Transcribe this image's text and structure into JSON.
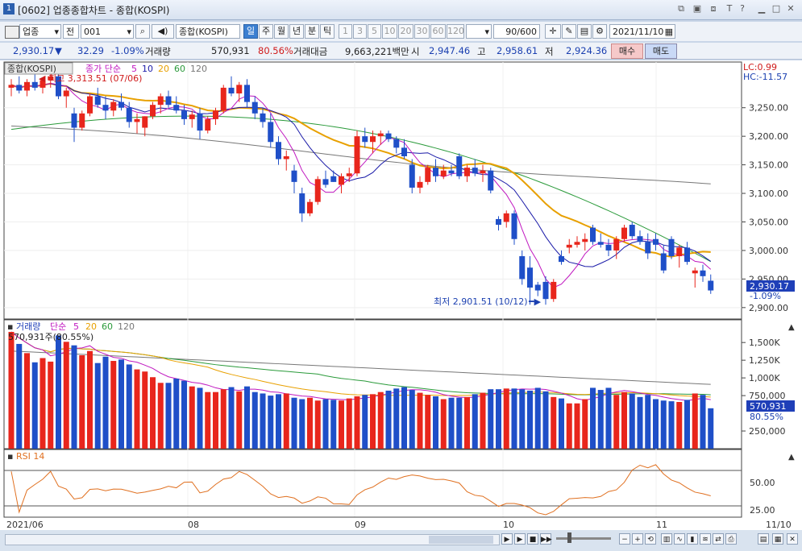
{
  "window": {
    "title": "[0602] 업종종합차트 - 종합(KOSPI)",
    "icon_label": "1"
  },
  "toolbar": {
    "market": "업종",
    "market_scope": "전",
    "code": "001",
    "index_name": "종합(KOSPI)",
    "periods": [
      "일",
      "주",
      "월",
      "년",
      "분",
      "틱"
    ],
    "selected_period": "일",
    "intervals": [
      "1",
      "3",
      "5",
      "10",
      "20",
      "30",
      "60",
      "120"
    ],
    "count": "90/600",
    "date": "2021/11/10"
  },
  "quote": {
    "price": "2,930.17",
    "change": "32.29",
    "change_pct": "-1.09%",
    "volume_label": "거래량",
    "volume": "570,931",
    "volume_ratio": "80.56%",
    "amount_label": "거래대금",
    "amount": "9,663,221백만",
    "open_label": "시",
    "open": "2,947.46",
    "high_label": "고",
    "high": "2,958.61",
    "low_label": "저",
    "low": "2,924.36",
    "buy_label": "매수",
    "sell_label": "매도"
  },
  "price_panel": {
    "series_label": "종합(KOSPI)",
    "ma_label": "종가 단순",
    "ma_periods": [
      "5",
      "10",
      "20",
      "60",
      "120"
    ],
    "max_annotation": "최고 3,313.51 (07/06)",
    "min_annotation": "최저 2,901.51 (10/12)",
    "lc_label": "LC:0.99",
    "hc_label": "HC:-11.57",
    "y_ticks": [
      "3,250.00",
      "3,200.00",
      "3,150.00",
      "3,100.00",
      "3,050.00",
      "3,000.00",
      "2,950.00",
      "2,900.00"
    ],
    "current_price_tag": "2,930.17",
    "current_change_tag": "-1.09%"
  },
  "volume_panel": {
    "series_label": "거래량",
    "ma_label": "단순",
    "ma_periods": [
      "5",
      "20",
      "60",
      "120"
    ],
    "last_label": "570,931주(80.55%)",
    "y_ticks": [
      "1,500K",
      "1,250K",
      "1,000K",
      "750,000",
      "250,000"
    ],
    "current_tag": "570,931",
    "current_pct_tag": "80.55%"
  },
  "rsi_panel": {
    "label": "RSI 14",
    "y_ticks": [
      "50.00",
      "25.00"
    ]
  },
  "x_axis": {
    "labels": [
      "2021/06",
      "08",
      "09",
      "10",
      "11"
    ],
    "end_date": "11/10"
  },
  "colors": {
    "up": "#e8261c",
    "down": "#1f4fc8",
    "ma5": "#c018c0",
    "ma10": "#1a1aa8",
    "ma20": "#e8a000",
    "ma60": "#2a9a3a",
    "ma120": "#777777",
    "rsi": "#e07020",
    "tag": "#1f3fb8"
  },
  "chart_data": {
    "type": "candlestick",
    "candles_ohlc": [
      [
        3285,
        3300,
        3270,
        3290
      ],
      [
        3290,
        3305,
        3275,
        3280
      ],
      [
        3280,
        3300,
        3270,
        3295
      ],
      [
        3295,
        3310,
        3280,
        3285
      ],
      [
        3285,
        3300,
        3275,
        3298
      ],
      [
        3298,
        3313,
        3285,
        3305
      ],
      [
        3305,
        3310,
        3265,
        3270
      ],
      [
        3270,
        3285,
        3250,
        3280
      ],
      [
        3240,
        3250,
        3190,
        3215
      ],
      [
        3215,
        3245,
        3210,
        3240
      ],
      [
        3240,
        3275,
        3235,
        3270
      ],
      [
        3270,
        3285,
        3250,
        3255
      ],
      [
        3255,
        3270,
        3230,
        3245
      ],
      [
        3245,
        3265,
        3235,
        3260
      ],
      [
        3260,
        3275,
        3245,
        3250
      ],
      [
        3250,
        3260,
        3215,
        3225
      ],
      [
        3225,
        3240,
        3205,
        3230
      ],
      [
        3215,
        3235,
        3200,
        3235
      ],
      [
        3235,
        3260,
        3230,
        3255
      ],
      [
        3255,
        3275,
        3240,
        3270
      ],
      [
        3270,
        3280,
        3250,
        3255
      ],
      [
        3255,
        3270,
        3240,
        3245
      ],
      [
        3245,
        3255,
        3220,
        3230
      ],
      [
        3230,
        3245,
        3215,
        3238
      ],
      [
        3240,
        3250,
        3195,
        3210
      ],
      [
        3210,
        3235,
        3205,
        3230
      ],
      [
        3230,
        3250,
        3220,
        3245
      ],
      [
        3245,
        3290,
        3240,
        3285
      ],
      [
        3285,
        3305,
        3270,
        3275
      ],
      [
        3275,
        3295,
        3260,
        3290
      ],
      [
        3290,
        3300,
        3250,
        3260
      ],
      [
        3260,
        3270,
        3230,
        3240
      ],
      [
        3240,
        3250,
        3215,
        3225
      ],
      [
        3225,
        3240,
        3180,
        3190
      ],
      [
        3190,
        3200,
        3150,
        3160
      ],
      [
        3160,
        3175,
        3140,
        3165
      ],
      [
        3140,
        3150,
        3100,
        3120
      ],
      [
        3100,
        3110,
        3050,
        3065
      ],
      [
        3065,
        3090,
        3060,
        3085
      ],
      [
        3085,
        3130,
        3080,
        3125
      ],
      [
        3125,
        3140,
        3110,
        3115
      ],
      [
        3130,
        3140,
        3120,
        3120
      ],
      [
        3115,
        3135,
        3100,
        3130
      ],
      [
        3130,
        3145,
        3120,
        3135
      ],
      [
        3135,
        3210,
        3130,
        3200
      ],
      [
        3200,
        3215,
        3180,
        3190
      ],
      [
        3190,
        3210,
        3170,
        3200
      ],
      [
        3200,
        3210,
        3185,
        3205
      ],
      [
        3205,
        3210,
        3190,
        3195
      ],
      [
        3195,
        3200,
        3170,
        3180
      ],
      [
        3180,
        3195,
        3160,
        3165
      ],
      [
        3150,
        3160,
        3100,
        3110
      ],
      [
        3110,
        3130,
        3100,
        3120
      ],
      [
        3120,
        3150,
        3115,
        3145
      ],
      [
        3145,
        3160,
        3120,
        3130
      ],
      [
        3130,
        3150,
        3125,
        3140
      ],
      [
        3140,
        3150,
        3130,
        3135
      ],
      [
        3165,
        3170,
        3125,
        3130
      ],
      [
        3130,
        3150,
        3120,
        3145
      ],
      [
        3145,
        3160,
        3130,
        3135
      ],
      [
        3135,
        3150,
        3120,
        3140
      ],
      [
        3140,
        3145,
        3100,
        3105
      ],
      [
        3055,
        3060,
        3035,
        3045
      ],
      [
        3050,
        3070,
        3040,
        3065
      ],
      [
        3065,
        3070,
        3010,
        3020
      ],
      [
        2990,
        3000,
        2940,
        2950
      ],
      [
        2970,
        2990,
        2905,
        2935
      ],
      [
        2940,
        2945,
        2920,
        2930
      ],
      [
        2945,
        2955,
        2905,
        2915
      ],
      [
        2915,
        2950,
        2910,
        2945
      ],
      [
        2990,
        3000,
        2975,
        2980
      ],
      [
        3005,
        3020,
        2995,
        3010
      ],
      [
        3010,
        3025,
        3005,
        3015
      ],
      [
        3015,
        3030,
        3000,
        3020
      ],
      [
        3040,
        3045,
        3010,
        3015
      ],
      [
        3015,
        3030,
        3005,
        3010
      ],
      [
        3010,
        3020,
        2990,
        3000
      ],
      [
        3000,
        3025,
        2985,
        3020
      ],
      [
        3020,
        3045,
        3015,
        3040
      ],
      [
        3045,
        3050,
        3020,
        3025
      ],
      [
        3025,
        3035,
        3010,
        3015
      ],
      [
        3015,
        3030,
        2985,
        2995
      ],
      [
        3020,
        3030,
        3000,
        3010
      ],
      [
        2995,
        3010,
        2960,
        2965
      ],
      [
        3020,
        3025,
        2985,
        2990
      ],
      [
        2990,
        3010,
        2970,
        3005
      ],
      [
        3005,
        3015,
        2975,
        2980
      ],
      [
        2960,
        2970,
        2935,
        2965
      ],
      [
        2965,
        2975,
        2945,
        2955
      ],
      [
        2947,
        2958,
        2924,
        2930
      ]
    ],
    "volumes_k": [
      1650,
      1480,
      1350,
      1220,
      1280,
      1230,
      1600,
      1510,
      1460,
      1320,
      1380,
      1210,
      1300,
      1240,
      1260,
      1190,
      1120,
      1090,
      1010,
      930,
      930,
      990,
      960,
      880,
      860,
      800,
      800,
      840,
      870,
      810,
      880,
      800,
      780,
      750,
      770,
      780,
      720,
      700,
      720,
      680,
      700,
      690,
      680,
      710,
      740,
      760,
      770,
      800,
      820,
      850,
      870,
      830,
      790,
      760,
      740,
      700,
      720,
      720,
      730,
      770,
      790,
      840,
      840,
      850,
      850,
      840,
      820,
      860,
      810,
      730,
      710,
      640,
      640,
      700,
      860,
      830,
      860,
      760,
      800,
      780,
      730,
      760,
      700,
      680,
      670,
      660,
      690,
      780,
      760,
      571
    ],
    "price_range": [
      2880,
      3330
    ],
    "volume_range": [
      0,
      1650
    ]
  }
}
